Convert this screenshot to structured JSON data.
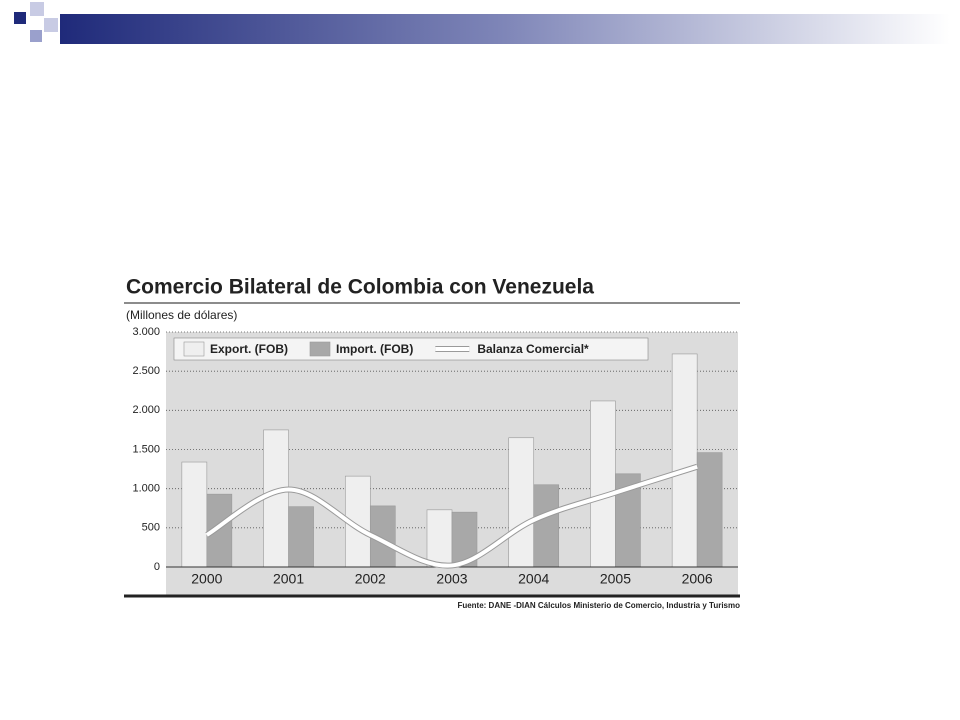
{
  "chart_data": {
    "type": "bar",
    "title": "Comercio Bilateral de Colombia con Venezuela",
    "subtitle": "(Millones de dólares)",
    "categories": [
      "2000",
      "2001",
      "2002",
      "2003",
      "2004",
      "2005",
      "2006"
    ],
    "series": [
      {
        "name": "Export. (FOB)",
        "color": "#efefef",
        "values": [
          1340,
          1750,
          1160,
          730,
          1650,
          2120,
          2720
        ]
      },
      {
        "name": "Import. (FOB)",
        "color": "#a8a8a8",
        "values": [
          930,
          770,
          780,
          700,
          1050,
          1190,
          1460
        ]
      },
      {
        "name": "Balanza Comercial*",
        "type": "line",
        "color": "#ffffff",
        "values": [
          410,
          990,
          410,
          20,
          600,
          950,
          1280
        ]
      }
    ],
    "ylim": [
      0,
      3000
    ],
    "yticks": [
      0,
      500,
      {
        "value": 1000,
        "label": "1.000"
      },
      {
        "value": 1500,
        "label": "1.500"
      },
      {
        "value": 2000,
        "label": "2.000"
      },
      {
        "value": 2500,
        "label": "2.500"
      },
      {
        "value": 3000,
        "label": "3.000"
      }
    ],
    "grid": true,
    "legend": "top",
    "source": "Fuente: DANE -DIAN Cálculos Ministerio de Comercio, Industria y Turismo"
  }
}
